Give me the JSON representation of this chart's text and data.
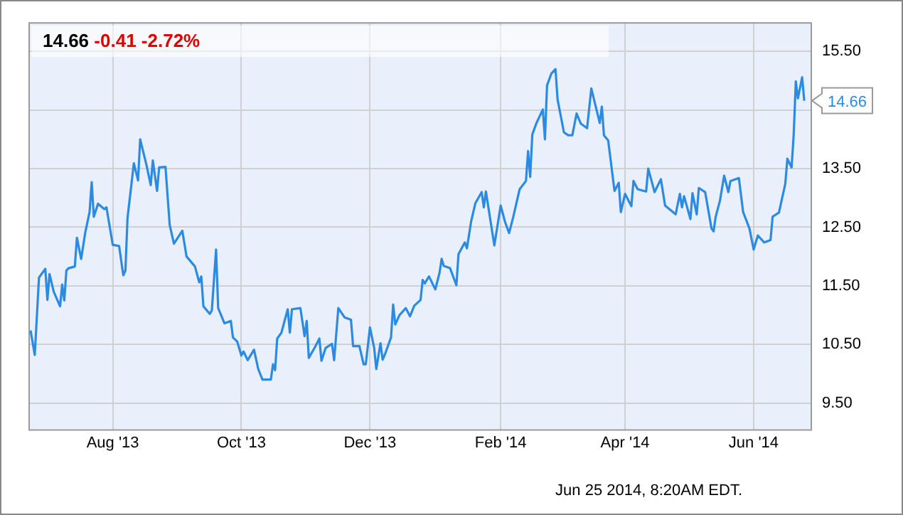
{
  "chart_data": {
    "type": "line",
    "title": "14.66",
    "subtitle": "-0.41 -2.72%",
    "x": [
      "2013-06-23",
      "2013-06-25",
      "2013-06-27",
      "2013-06-30",
      "2013-07-01",
      "2013-07-02",
      "2013-07-04",
      "2013-07-07",
      "2013-07-08",
      "2013-07-09",
      "2013-07-10",
      "2013-07-11",
      "2013-07-14",
      "2013-07-15",
      "2013-07-17",
      "2013-07-19",
      "2013-07-21",
      "2013-07-22",
      "2013-07-23",
      "2013-07-25",
      "2013-07-28",
      "2013-07-29",
      "2013-08-01",
      "2013-08-04",
      "2013-08-06",
      "2013-08-07",
      "2013-08-08",
      "2013-08-11",
      "2013-08-13",
      "2013-08-14",
      "2013-08-17",
      "2013-08-19",
      "2013-08-20",
      "2013-08-22",
      "2013-08-23",
      "2013-08-26",
      "2013-08-28",
      "2013-08-30",
      "2013-09-03",
      "2013-09-05",
      "2013-09-09",
      "2013-09-11",
      "2013-09-12",
      "2013-09-13",
      "2013-09-16",
      "2013-09-17",
      "2013-09-19",
      "2013-09-20",
      "2013-09-23",
      "2013-09-26",
      "2013-09-27",
      "2013-09-29",
      "2013-10-01",
      "2013-10-02",
      "2013-10-04",
      "2013-10-07",
      "2013-10-09",
      "2013-10-11",
      "2013-10-15",
      "2013-10-16",
      "2013-10-17",
      "2013-10-18",
      "2013-10-20",
      "2013-10-23",
      "2013-10-24",
      "2013-10-25",
      "2013-10-29",
      "2013-10-31",
      "2013-11-01",
      "2013-11-02",
      "2013-11-05",
      "2013-11-07",
      "2013-11-08",
      "2013-11-10",
      "2013-11-13",
      "2013-11-14",
      "2013-11-16",
      "2013-11-19",
      "2013-11-22",
      "2013-11-23",
      "2013-11-26",
      "2013-11-28",
      "2013-11-29",
      "2013-12-01",
      "2013-12-03",
      "2013-12-04",
      "2013-12-06",
      "2013-12-07",
      "2013-12-08",
      "2013-12-11",
      "2013-12-12",
      "2013-12-13",
      "2013-12-15",
      "2013-12-18",
      "2013-12-20",
      "2013-12-22",
      "2013-12-25",
      "2013-12-26",
      "2013-12-27",
      "2013-12-29",
      "2014-01-01",
      "2014-01-03",
      "2014-01-04",
      "2014-01-05",
      "2014-01-08",
      "2014-01-11",
      "2014-01-12",
      "2014-01-15",
      "2014-01-16",
      "2014-01-18",
      "2014-01-20",
      "2014-01-23",
      "2014-01-24",
      "2014-01-25",
      "2014-01-29",
      "2014-02-01",
      "2014-02-03",
      "2014-02-05",
      "2014-02-07",
      "2014-02-10",
      "2014-02-13",
      "2014-02-14",
      "2014-02-15",
      "2014-02-16",
      "2014-02-18",
      "2014-02-21",
      "2014-02-22",
      "2014-02-23",
      "2014-02-25",
      "2014-02-27",
      "2014-02-28",
      "2014-03-03",
      "2014-03-05",
      "2014-03-07",
      "2014-03-09",
      "2014-03-11",
      "2014-03-14",
      "2014-03-16",
      "2014-03-20",
      "2014-03-21",
      "2014-03-22",
      "2014-03-24",
      "2014-03-27",
      "2014-03-29",
      "2014-03-30",
      "2014-04-01",
      "2014-04-04",
      "2014-04-05",
      "2014-04-07",
      "2014-04-11",
      "2014-04-12",
      "2014-04-15",
      "2014-04-18",
      "2014-04-20",
      "2014-04-25",
      "2014-04-27",
      "2014-04-28",
      "2014-04-29",
      "2014-05-02",
      "2014-05-03",
      "2014-05-05",
      "2014-05-06",
      "2014-05-09",
      "2014-05-12",
      "2014-05-13",
      "2014-05-14",
      "2014-05-16",
      "2014-05-18",
      "2014-05-20",
      "2014-05-21",
      "2014-05-25",
      "2014-05-27",
      "2014-05-30",
      "2014-06-01",
      "2014-06-03",
      "2014-06-06",
      "2014-06-09",
      "2014-06-10",
      "2014-06-13",
      "2014-06-16",
      "2014-06-17",
      "2014-06-19",
      "2014-06-20",
      "2014-06-21",
      "2014-06-22",
      "2014-06-24",
      "2014-06-25"
    ],
    "series": [
      {
        "color": "#2b8be2",
        "values": [
          10.74,
          10.32,
          11.64,
          11.79,
          11.26,
          11.7,
          11.4,
          11.15,
          11.52,
          11.25,
          11.76,
          11.8,
          11.83,
          12.32,
          11.96,
          12.42,
          12.76,
          13.27,
          12.68,
          12.9,
          12.81,
          12.84,
          12.2,
          12.18,
          11.68,
          11.76,
          12.66,
          13.59,
          13.3,
          14.0,
          13.56,
          13.22,
          13.64,
          13.12,
          13.52,
          13.53,
          12.54,
          12.22,
          12.44,
          12.0,
          11.83,
          11.56,
          11.66,
          11.15,
          11.02,
          11.08,
          12.12,
          11.12,
          10.86,
          10.9,
          10.62,
          10.55,
          10.31,
          10.38,
          10.23,
          10.41,
          10.08,
          9.9,
          9.9,
          10.16,
          10.06,
          10.6,
          10.7,
          11.1,
          10.7,
          11.1,
          11.12,
          10.64,
          10.9,
          10.27,
          10.46,
          10.6,
          10.22,
          10.44,
          10.51,
          10.23,
          11.12,
          10.96,
          10.92,
          10.47,
          10.47,
          10.16,
          10.16,
          10.79,
          10.44,
          10.08,
          10.52,
          10.24,
          10.32,
          10.62,
          11.18,
          10.84,
          11.0,
          11.12,
          10.98,
          11.16,
          11.26,
          11.6,
          11.54,
          11.66,
          11.44,
          11.72,
          11.96,
          11.84,
          11.8,
          11.51,
          12.04,
          12.24,
          12.14,
          12.6,
          12.91,
          13.1,
          12.84,
          13.11,
          12.19,
          12.87,
          12.6,
          12.4,
          12.68,
          13.15,
          13.29,
          13.8,
          13.36,
          14.08,
          14.28,
          14.51,
          14.0,
          14.92,
          15.12,
          15.2,
          14.68,
          14.12,
          14.07,
          14.07,
          14.44,
          14.27,
          14.19,
          14.87,
          14.28,
          14.56,
          14.07,
          13.98,
          13.12,
          13.26,
          12.76,
          13.07,
          12.86,
          13.29,
          13.15,
          13.11,
          13.5,
          13.1,
          13.32,
          12.87,
          12.72,
          13.07,
          12.84,
          13.03,
          12.64,
          13.08,
          12.72,
          13.17,
          13.1,
          12.48,
          12.43,
          12.68,
          12.95,
          13.38,
          13.1,
          13.29,
          13.34,
          12.76,
          12.48,
          12.12,
          12.36,
          12.24,
          12.28,
          12.68,
          12.75,
          13.24,
          13.67,
          13.52,
          14.08,
          14.99,
          14.7,
          15.06,
          14.66
        ]
      }
    ],
    "xlim": [
      "2013-06-22",
      "2014-06-28"
    ],
    "xticks": [
      {
        "value": "2013-08-01",
        "label": "Aug '13"
      },
      {
        "value": "2013-10-01",
        "label": "Oct '13"
      },
      {
        "value": "2013-12-01",
        "label": "Dec '13"
      },
      {
        "value": "2014-02-01",
        "label": "Feb '14"
      },
      {
        "value": "2014-04-01",
        "label": "Apr '14"
      },
      {
        "value": "2014-06-01",
        "label": "Jun '14"
      }
    ],
    "ylim": [
      9.05,
      16.0
    ],
    "yticks": [
      {
        "value": 9.5,
        "label": "9.50"
      },
      {
        "value": 10.5,
        "label": "10.50"
      },
      {
        "value": 11.5,
        "label": "11.50"
      },
      {
        "value": 12.5,
        "label": "12.50"
      },
      {
        "value": 13.5,
        "label": "13.50"
      },
      {
        "value": 14.5,
        "label": null
      },
      {
        "value": 15.5,
        "label": "15.50"
      }
    ],
    "grid": true,
    "marker": "none",
    "line_style": "solid",
    "legend": false,
    "annotations": [
      {
        "text": "14.66",
        "x": "2014-06-25",
        "y": 14.66
      },
      "Jun 25 2014, 8:20AM EDT."
    ]
  }
}
